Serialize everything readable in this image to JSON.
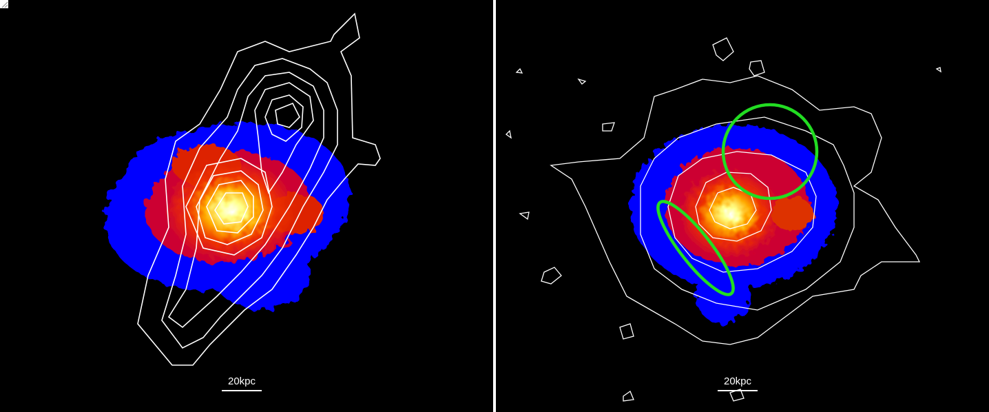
{
  "figure": {
    "left_panel": {
      "scale_label": "20kpc"
    },
    "right_panel": {
      "scale_label": "20kpc"
    }
  },
  "colors": {
    "background": "#000000",
    "contour": "#ffffff",
    "region": "#22dd22",
    "colormap": [
      "#0000ff",
      "#cc0033",
      "#ff3300",
      "#ff9900",
      "#ffff66",
      "#ffffff"
    ]
  }
}
